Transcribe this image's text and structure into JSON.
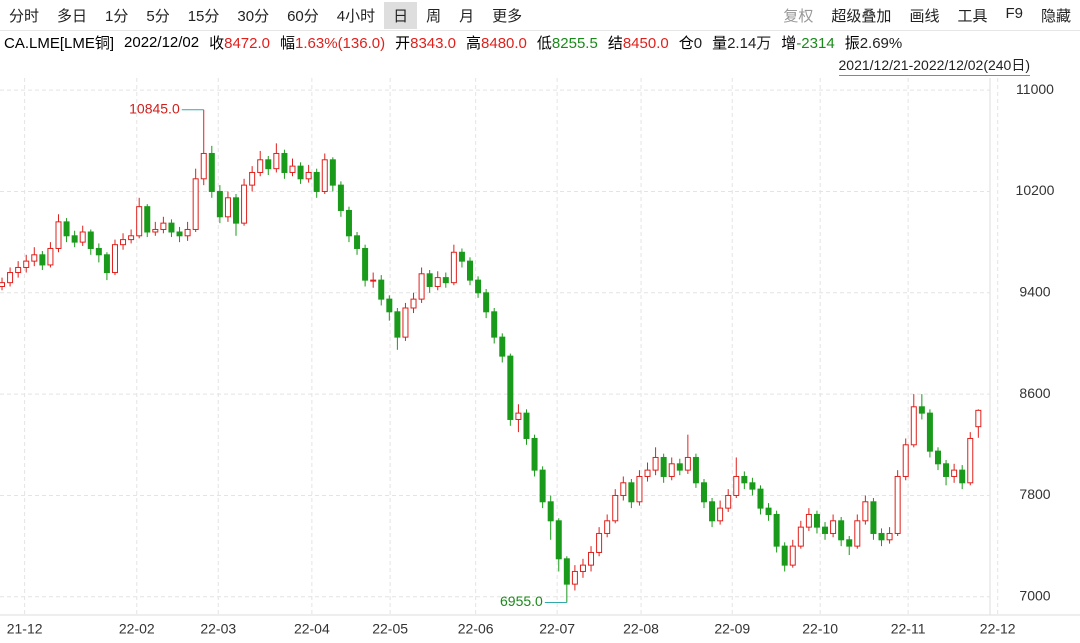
{
  "toolbar": {
    "left": [
      "分时",
      "多日",
      "1分",
      "5分",
      "15分",
      "30分",
      "60分",
      "4小时",
      "日",
      "周",
      "月",
      "更多"
    ],
    "right": [
      "复权",
      "超级叠加",
      "画线",
      "工具",
      "F9",
      "隐藏"
    ]
  },
  "info": {
    "symbol": "CA.LME[LME铜]",
    "date": "2022/12/02",
    "items": [
      {
        "label": "收",
        "value": "8472.0",
        "color": "#e0201c"
      },
      {
        "label": "幅",
        "value": "1.63%(136.0)",
        "color": "#e0201c"
      },
      {
        "label": "开",
        "value": "8343.0",
        "color": "#e0201c"
      },
      {
        "label": "高",
        "value": "8480.0",
        "color": "#e0201c"
      },
      {
        "label": "低",
        "value": "8255.5",
        "color": "#1a8a1a"
      },
      {
        "label": "结",
        "value": "8450.0",
        "color": "#e0201c"
      },
      {
        "label": "仓",
        "value": "0",
        "color": "#222"
      },
      {
        "label": "量",
        "value": "2.14万",
        "color": "#222"
      },
      {
        "label": "增",
        "value": "-2314",
        "color": "#1a8a1a"
      },
      {
        "label": "振",
        "value": "2.69%",
        "color": "#222"
      }
    ],
    "range": "2021/12/21-2022/12/02(240日)"
  },
  "chart_data": {
    "type": "candlestick",
    "up_color": "#e0201c",
    "down_color": "#1a9a1a",
    "grid": true,
    "high_label": "10845.0",
    "low_label": "6955.0",
    "ylim": [
      6880,
      11080
    ],
    "yticks": [
      7000,
      7800,
      8600,
      9400,
      10200,
      11000
    ],
    "xlim": [
      -0.25,
      133.6
    ],
    "xticks": [
      {
        "value": 2.8,
        "label": "21-12"
      },
      {
        "value": 16.7,
        "label": "22-02"
      },
      {
        "value": 26.8,
        "label": "22-03"
      },
      {
        "value": 38.4,
        "label": "22-04"
      },
      {
        "value": 48.1,
        "label": "22-05"
      },
      {
        "value": 58.7,
        "label": "22-06"
      },
      {
        "value": 68.8,
        "label": "22-07"
      },
      {
        "value": 79.2,
        "label": "22-08"
      },
      {
        "value": 90.5,
        "label": "22-09"
      },
      {
        "value": 101.4,
        "label": "22-10"
      },
      {
        "value": 112.3,
        "label": "22-11"
      },
      {
        "value": 123.4,
        "label": "22-12"
      }
    ],
    "open": [
      9450,
      9480,
      9560,
      9600,
      9650,
      9700,
      9620,
      9750,
      9960,
      9850,
      9800,
      9880,
      9750,
      9700,
      9560,
      9780,
      9820,
      9850,
      10080,
      9880,
      9900,
      9950,
      9880,
      9850,
      9900,
      10300,
      10500,
      10200,
      10000,
      10150,
      9950,
      10250,
      10350,
      10450,
      10380,
      10500,
      10350,
      10400,
      10300,
      10350,
      10200,
      10450,
      10250,
      10050,
      9850,
      9750,
      9500,
      9500,
      9350,
      9250,
      9050,
      9280,
      9350,
      9550,
      9450,
      9520,
      9480,
      9720,
      9650,
      9500,
      9400,
      9250,
      9050,
      8900,
      8400,
      8450,
      8250,
      8000,
      7750,
      7600,
      7300,
      7100,
      7200,
      7250,
      7350,
      7500,
      7600,
      7800,
      7900,
      7750,
      7950,
      8000,
      8100,
      7950,
      8050,
      8000,
      8100,
      7900,
      7750,
      7600,
      7700,
      7800,
      7950,
      7900,
      7850,
      7700,
      7650,
      7400,
      7250,
      7400,
      7550,
      7650,
      7550,
      7500,
      7600,
      7450,
      7400,
      7600,
      7750,
      7500,
      7450,
      7500,
      7950,
      8200,
      8500,
      8450,
      8150,
      8050,
      7950,
      8000,
      7900,
      8343
    ],
    "high": [
      9520,
      9600,
      9650,
      9700,
      9760,
      9730,
      9800,
      10020,
      9990,
      9890,
      9930,
      9900,
      9790,
      9720,
      9820,
      9870,
      9900,
      10150,
      10100,
      9960,
      10000,
      9980,
      9920,
      9960,
      10380,
      10845,
      10560,
      10250,
      10200,
      10180,
      10300,
      10400,
      10520,
      10480,
      10580,
      10530,
      10460,
      10430,
      10410,
      10380,
      10500,
      10470,
      10280,
      10080,
      9880,
      9780,
      9560,
      9540,
      9380,
      9280,
      9320,
      9400,
      9600,
      9580,
      9570,
      9560,
      9780,
      9750,
      9680,
      9530,
      9430,
      9280,
      9080,
      8920,
      8520,
      8480,
      8280,
      8030,
      7800,
      7620,
      7320,
      7250,
      7300,
      7400,
      7550,
      7650,
      7850,
      7950,
      7930,
      8000,
      8060,
      8180,
      8130,
      8100,
      8090,
      8280,
      8130,
      7930,
      7780,
      7760,
      7850,
      8100,
      7990,
      7940,
      7880,
      7740,
      7680,
      7430,
      7450,
      7600,
      7700,
      7680,
      7590,
      7650,
      7630,
      7480,
      7650,
      7800,
      7780,
      7540,
      7550,
      8000,
      8250,
      8600,
      8600,
      8480,
      8180,
      8080,
      8050,
      8040,
      8300,
      8480
    ],
    "low": [
      9420,
      9450,
      9520,
      9560,
      9610,
      9580,
      9600,
      9720,
      9800,
      9760,
      9770,
      9700,
      9640,
      9500,
      9540,
      9740,
      9790,
      9830,
      9840,
      9850,
      9870,
      9840,
      9800,
      9810,
      9880,
      10250,
      10150,
      9950,
      9960,
      9850,
      9930,
      10200,
      10320,
      10330,
      10350,
      10300,
      10320,
      10260,
      10270,
      10150,
      10180,
      10200,
      10000,
      9800,
      9700,
      9450,
      9440,
      9300,
      9180,
      8950,
      9020,
      9240,
      9320,
      9400,
      9420,
      9440,
      9460,
      9600,
      9460,
      9360,
      9200,
      9000,
      8850,
      8350,
      8300,
      8200,
      7950,
      7700,
      7450,
      7200,
      6955,
      7050,
      7150,
      7200,
      7320,
      7470,
      7580,
      7760,
      7700,
      7720,
      7910,
      7960,
      7900,
      7920,
      7960,
      7970,
      7860,
      7700,
      7550,
      7570,
      7670,
      7780,
      7850,
      7800,
      7650,
      7600,
      7350,
      7200,
      7230,
      7380,
      7520,
      7500,
      7450,
      7470,
      7400,
      7330,
      7380,
      7570,
      7450,
      7400,
      7420,
      7480,
      7920,
      8180,
      8400,
      8100,
      8000,
      7880,
      7900,
      7850,
      7880,
      8255.5
    ],
    "close": [
      9480,
      9560,
      9600,
      9650,
      9700,
      9620,
      9750,
      9960,
      9850,
      9800,
      9880,
      9750,
      9700,
      9560,
      9780,
      9820,
      9850,
      10080,
      9880,
      9900,
      9950,
      9880,
      9850,
      9900,
      10300,
      10500,
      10200,
      10000,
      10150,
      9950,
      10250,
      10350,
      10450,
      10380,
      10500,
      10350,
      10400,
      10300,
      10350,
      10200,
      10450,
      10250,
      10050,
      9850,
      9750,
      9500,
      9500,
      9350,
      9250,
      9050,
      9280,
      9350,
      9550,
      9450,
      9520,
      9480,
      9720,
      9650,
      9500,
      9400,
      9250,
      9050,
      8900,
      8400,
      8450,
      8250,
      8000,
      7750,
      7600,
      7300,
      7100,
      7200,
      7250,
      7350,
      7500,
      7600,
      7800,
      7900,
      7750,
      7950,
      8000,
      8100,
      7950,
      8050,
      8000,
      8100,
      7900,
      7750,
      7600,
      7700,
      7800,
      7950,
      7900,
      7850,
      7700,
      7650,
      7400,
      7250,
      7400,
      7550,
      7650,
      7550,
      7500,
      7600,
      7450,
      7400,
      7600,
      7750,
      7500,
      7450,
      7500,
      7950,
      8200,
      8500,
      8450,
      8150,
      8050,
      7950,
      8000,
      7900,
      8250,
      8472
    ]
  }
}
